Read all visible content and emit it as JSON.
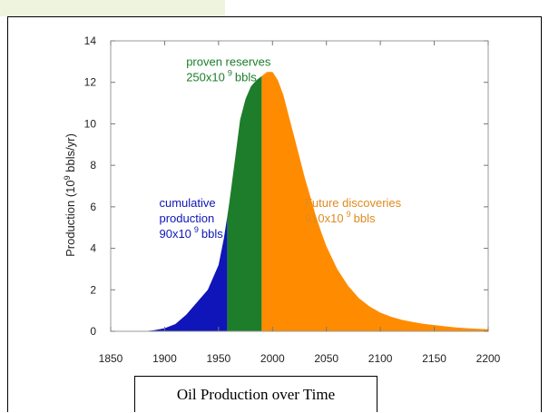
{
  "chart_data": {
    "type": "area",
    "title": "",
    "caption": "Oil Production over Time",
    "xlabel": "",
    "ylabel": {
      "pre": "Production (10",
      "sup": "9",
      "post": " bbls/yr)"
    },
    "xlim": [
      1850,
      2200
    ],
    "ylim": [
      0,
      14
    ],
    "x_ticks": [
      1850,
      1900,
      1950,
      2000,
      2050,
      2100,
      2150,
      2200
    ],
    "y_ticks": [
      0,
      2,
      4,
      6,
      8,
      10,
      12,
      14
    ],
    "grid": false,
    "x": [
      1880,
      1890,
      1900,
      1910,
      1920,
      1930,
      1940,
      1950,
      1955,
      1960,
      1965,
      1970,
      1975,
      1980,
      1985,
      1990,
      1995,
      2000,
      2005,
      2010,
      2015,
      2020,
      2025,
      2030,
      2035,
      2040,
      2045,
      2050,
      2060,
      2070,
      2080,
      2090,
      2100,
      2110,
      2120,
      2130,
      2140,
      2150,
      2160,
      2170,
      2180,
      2190,
      2200
    ],
    "y": [
      0,
      0.05,
      0.15,
      0.35,
      0.8,
      1.4,
      2.0,
      3.2,
      4.5,
      6.2,
      8.2,
      10.2,
      11.2,
      11.8,
      12.1,
      12.3,
      12.5,
      12.5,
      12.1,
      11.4,
      10.4,
      9.4,
      8.4,
      7.4,
      6.5,
      5.6,
      4.8,
      4.1,
      3.0,
      2.2,
      1.6,
      1.2,
      0.9,
      0.7,
      0.55,
      0.45,
      0.36,
      0.3,
      0.24,
      0.19,
      0.15,
      0.12,
      0.1
    ],
    "regions": [
      {
        "name": "cumulative production",
        "from": 1880,
        "to": 1958,
        "color": "#0f15b8"
      },
      {
        "name": "proven reserves",
        "from": 1958,
        "to": 1990,
        "color": "#1d7d2a"
      },
      {
        "name": "Future discoveries",
        "from": 1990,
        "to": 2200,
        "color": "#ff8c00"
      }
    ],
    "annotations": [
      {
        "lines": [
          "proven reserves",
          "250x10 9 bbls"
        ],
        "sup_line": 1,
        "color": "#1d7d2a",
        "x": 1920,
        "y": 12.8
      },
      {
        "lines": [
          "cumulative",
          "production",
          "90x10 9 bbls"
        ],
        "sup_line": 2,
        "color": "#0f15b8",
        "x": 1895,
        "y": 6.0
      },
      {
        "lines": [
          "Future discoveries",
          "910x10 9 bbls"
        ],
        "sup_line": 1,
        "color": "#e08a1e",
        "x": 2030,
        "y": 6.0
      }
    ]
  }
}
